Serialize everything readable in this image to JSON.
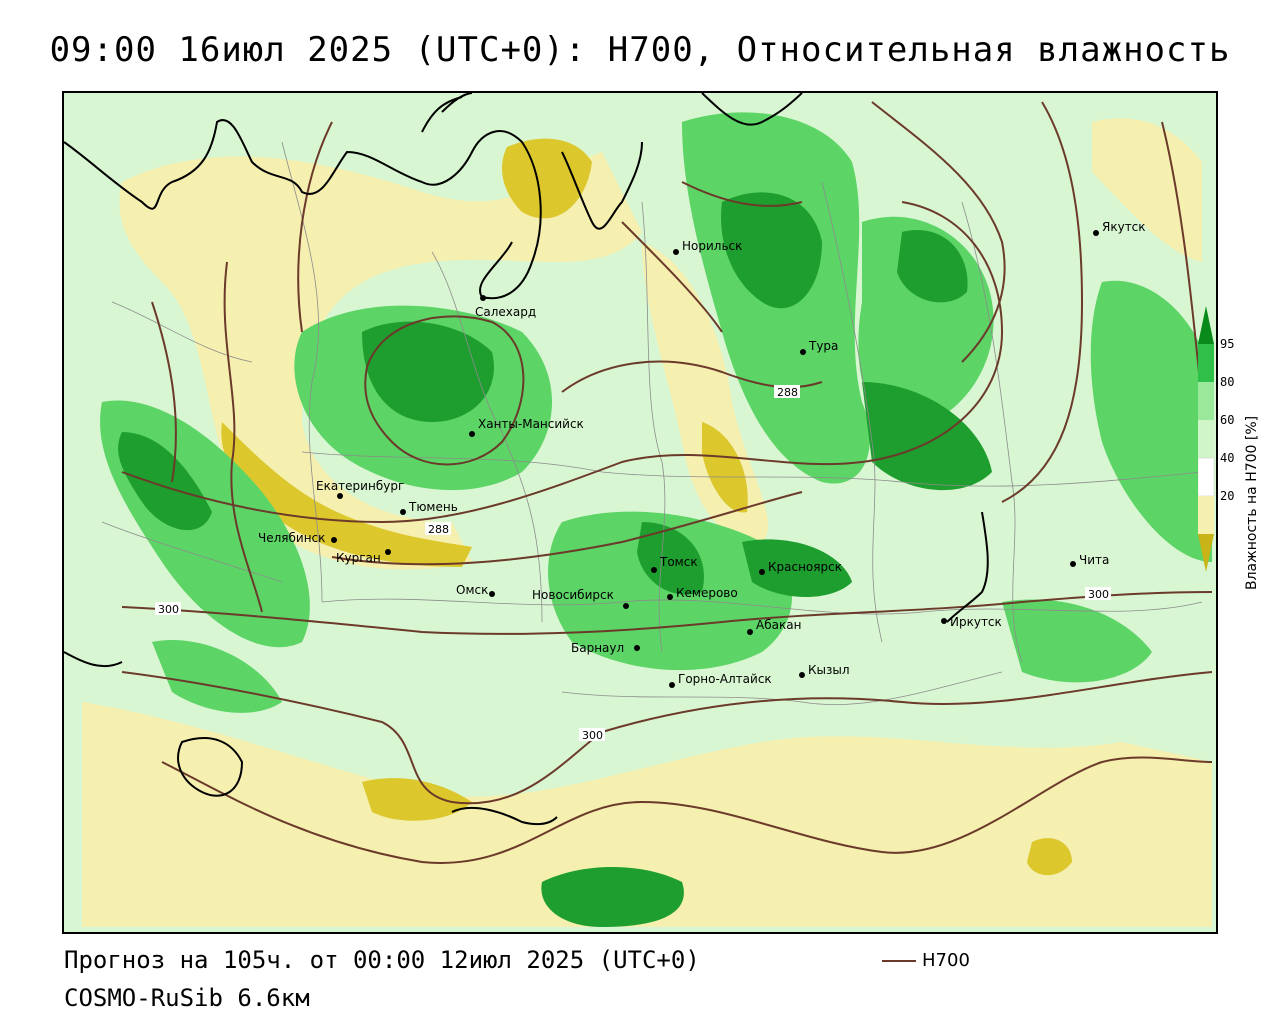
{
  "title": "09:00 16июл 2025 (UTC+0): H700, Относительная влажность",
  "footer": {
    "forecast": "Прогноз на 105ч. от 00:00 12июл 2025 (UTC+0)",
    "model": "COSMO-RuSib 6.6км",
    "contour_key": "H700"
  },
  "legend": {
    "title": "Влажность на H700 [%]",
    "ticks": [
      "95",
      "80",
      "60",
      "40",
      "20"
    ],
    "colors": [
      "#0a8a1a",
      "#2fc04a",
      "#9be89a",
      "#cff5c8",
      "#ffffff",
      "#f5efb0",
      "#e6d640",
      "#c8b418"
    ]
  },
  "colors": {
    "contour": "#6b3a2a",
    "coast": "#000000",
    "border": "#8c8c8c",
    "humid_high": "#1e9e2e",
    "humid_mid": "#5cd466",
    "humid_low": "#c9f3c2",
    "dry_light": "#f5efb0",
    "dry_dark": "#dcc72c"
  },
  "contour_labels": [
    "288",
    "288",
    "300",
    "300",
    "300"
  ],
  "cities": [
    {
      "name": "Норильск"
    },
    {
      "name": "Якутск"
    },
    {
      "name": "Салехард"
    },
    {
      "name": "Тура"
    },
    {
      "name": "Ханты-Мансийск"
    },
    {
      "name": "Екатеринбург"
    },
    {
      "name": "Тюмень"
    },
    {
      "name": "Челябинск"
    },
    {
      "name": "Курган"
    },
    {
      "name": "Омск"
    },
    {
      "name": "Новосибирск"
    },
    {
      "name": "Томск"
    },
    {
      "name": "Кемерово"
    },
    {
      "name": "Красноярск"
    },
    {
      "name": "Абакан"
    },
    {
      "name": "Барнаул"
    },
    {
      "name": "Горно-Алтайск"
    },
    {
      "name": "Кызыл"
    },
    {
      "name": "Иркутск"
    },
    {
      "name": "Чита"
    }
  ]
}
